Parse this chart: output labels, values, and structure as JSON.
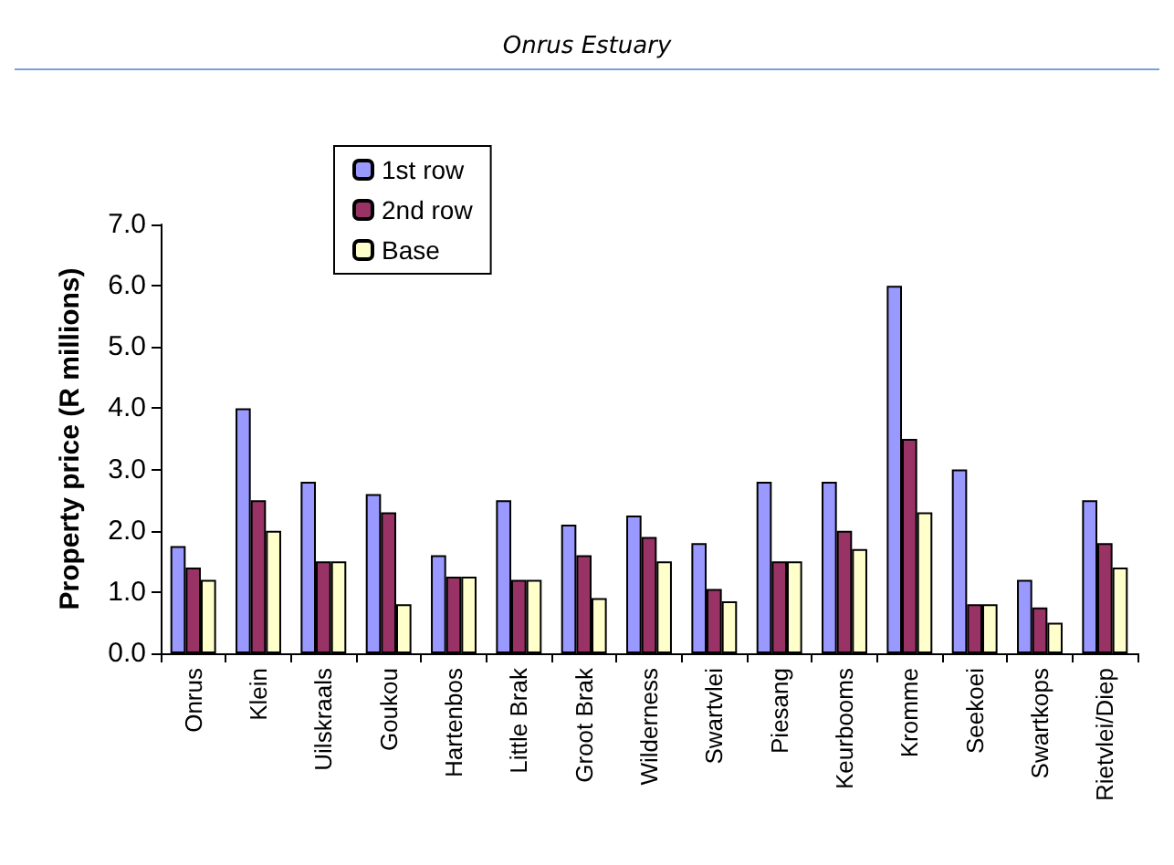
{
  "chart_data": {
    "type": "bar",
    "title": "Onrus Estuary",
    "ylabel": "Property price (R millions)",
    "categories": [
      "Onrus",
      "Klein",
      "Uilskraals",
      "Goukou",
      "Hartenbos",
      "Little Brak",
      "Groot Brak",
      "Wilderness",
      "Swartvlei",
      "Piesang",
      "Keurbooms",
      "Kromme",
      "Seekoei",
      "Swartkops",
      "Rietvlei/Diep"
    ],
    "series": [
      {
        "name": "1st row",
        "color": "#9999ff",
        "values": [
          1.75,
          4.0,
          2.8,
          2.6,
          1.6,
          2.5,
          2.1,
          2.25,
          1.8,
          2.8,
          2.8,
          6.0,
          3.0,
          1.2,
          2.5
        ]
      },
      {
        "name": "2nd row",
        "color": "#993366",
        "values": [
          1.4,
          2.5,
          1.5,
          2.3,
          1.25,
          1.2,
          1.6,
          1.9,
          1.05,
          1.5,
          2.0,
          3.5,
          0.8,
          0.75,
          1.8
        ]
      },
      {
        "name": "Base",
        "color": "#ffffcc",
        "values": [
          1.2,
          2.0,
          1.5,
          0.8,
          1.25,
          1.2,
          0.9,
          1.5,
          0.85,
          1.5,
          1.7,
          2.3,
          0.8,
          0.5,
          1.4
        ]
      }
    ],
    "ylim": [
      0,
      7
    ],
    "yticks": [
      {
        "value": 0,
        "label": "0.0"
      },
      {
        "value": 1,
        "label": "1.0"
      },
      {
        "value": 2,
        "label": "2.0"
      },
      {
        "value": 3,
        "label": "3.0"
      },
      {
        "value": 4,
        "label": "4.0"
      },
      {
        "value": 5,
        "label": "5.0"
      },
      {
        "value": 6,
        "label": "6.0"
      },
      {
        "value": 7,
        "label": "7.0"
      }
    ],
    "grid": false,
    "legend": "top left"
  }
}
